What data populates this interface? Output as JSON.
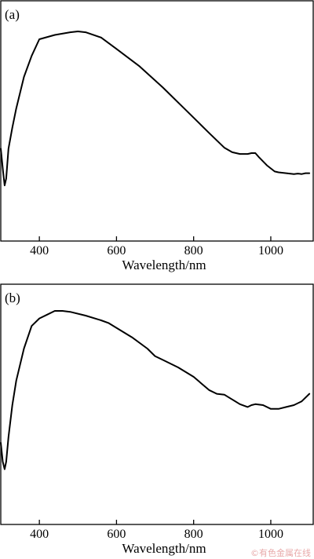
{
  "chart_data": [
    {
      "type": "line",
      "panel_label": "(a)",
      "xlabel": "Wavelength/nm",
      "ylabel": "",
      "xlim": [
        300,
        1110
      ],
      "ylim": [
        0,
        1
      ],
      "xticks": [
        400,
        600,
        800,
        1000
      ],
      "grid": false,
      "series": [
        {
          "x": [
            300,
            306,
            310,
            314,
            320,
            330,
            340,
            360,
            380,
            400,
            440,
            480,
            500,
            520,
            560,
            600,
            660,
            720,
            780,
            840,
            880,
            900,
            920,
            940,
            950,
            960,
            970,
            990,
            1010,
            1020,
            1040,
            1060,
            1070,
            1080,
            1090,
            1100
          ],
          "values": [
            0.33,
            0.2,
            0.12,
            0.16,
            0.33,
            0.45,
            0.56,
            0.74,
            0.86,
            0.955,
            0.98,
            0.995,
            1.0,
            0.995,
            0.965,
            0.9,
            0.8,
            0.68,
            0.55,
            0.42,
            0.335,
            0.31,
            0.3,
            0.3,
            0.305,
            0.305,
            0.28,
            0.235,
            0.2,
            0.195,
            0.19,
            0.185,
            0.188,
            0.185,
            0.19,
            0.19
          ]
        }
      ]
    },
    {
      "type": "line",
      "panel_label": "(b)",
      "xlabel": "Wavelength/nm",
      "ylabel": "",
      "xlim": [
        300,
        1110
      ],
      "ylim": [
        0,
        1
      ],
      "xticks": [
        400,
        600,
        800,
        1000
      ],
      "grid": false,
      "series": [
        {
          "x": [
            300,
            305,
            310,
            314,
            320,
            330,
            340,
            360,
            380,
            400,
            420,
            440,
            460,
            480,
            520,
            560,
            580,
            600,
            640,
            680,
            700,
            720,
            760,
            800,
            840,
            860,
            880,
            900,
            920,
            940,
            950,
            960,
            980,
            1000,
            1020,
            1040,
            1060,
            1080,
            1100
          ],
          "values": [
            0.3,
            0.2,
            0.16,
            0.2,
            0.33,
            0.5,
            0.63,
            0.8,
            0.92,
            0.96,
            0.98,
            1.0,
            1.0,
            0.995,
            0.975,
            0.95,
            0.935,
            0.91,
            0.86,
            0.8,
            0.76,
            0.74,
            0.7,
            0.65,
            0.58,
            0.56,
            0.555,
            0.53,
            0.505,
            0.49,
            0.5,
            0.505,
            0.5,
            0.48,
            0.48,
            0.49,
            0.5,
            0.52,
            0.56
          ]
        }
      ]
    }
  ],
  "watermark": "©有色金属在线"
}
